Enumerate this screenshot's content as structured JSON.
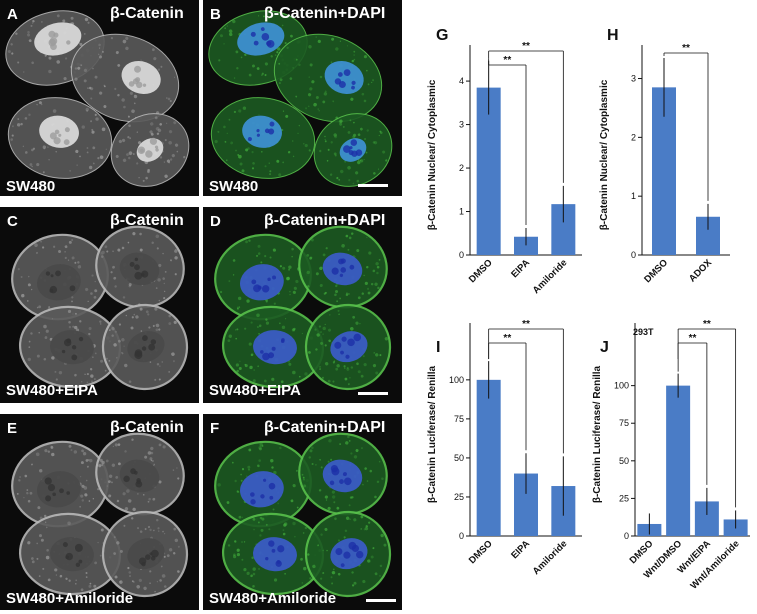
{
  "colors": {
    "bar": "#4a7cc6",
    "green": "#3e9a35",
    "blue": "#2f50c8",
    "axis": "#111111"
  },
  "micrographs": [
    {
      "letter": "A",
      "stain": "β-Catenin",
      "condition": "SW480",
      "merged": false,
      "pattern": "nuclear",
      "scalebar": false
    },
    {
      "letter": "B",
      "stain": "β-Catenin+DAPI",
      "condition": "SW480",
      "merged": true,
      "pattern": "nuclear",
      "scalebar": true
    },
    {
      "letter": "C",
      "stain": "β-Catenin",
      "condition": "SW480+EIPA",
      "merged": false,
      "pattern": "membrane",
      "scalebar": false
    },
    {
      "letter": "D",
      "stain": "β-Catenin+DAPI",
      "condition": "SW480+EIPA",
      "merged": true,
      "pattern": "membrane",
      "scalebar": true
    },
    {
      "letter": "E",
      "stain": "β-Catenin",
      "condition": "SW480+Amiloride",
      "merged": false,
      "pattern": "membrane",
      "scalebar": false
    },
    {
      "letter": "F",
      "stain": "β-Catenin+DAPI",
      "condition": "SW480+Amiloride",
      "merged": true,
      "pattern": "membrane",
      "scalebar": true
    }
  ],
  "chart_data": [
    {
      "panel": "G",
      "type": "bar",
      "categories": [
        "DMSO",
        "EIPA",
        "Amiloride"
      ],
      "values": [
        3.85,
        0.42,
        1.17
      ],
      "errors": [
        0.62,
        0.2,
        0.42
      ],
      "ylabel": "β-Catenin Nuclear/ Cytoplasmic",
      "ylim": [
        0,
        4.6
      ],
      "yticks": [
        0,
        1,
        2,
        3,
        4
      ],
      "annotation": "",
      "significance": [
        {
          "from": 0,
          "to": 1,
          "label": "**"
        },
        {
          "from": 0,
          "to": 2,
          "label": "**"
        }
      ]
    },
    {
      "panel": "H",
      "type": "bar",
      "categories": [
        "DMSO",
        "ADOX"
      ],
      "values": [
        2.85,
        0.65
      ],
      "errors": [
        0.5,
        0.22
      ],
      "ylabel": "β-Catenin Nuclear/ Cytoplasmic",
      "ylim": [
        0,
        3.4
      ],
      "yticks": [
        0,
        1,
        2,
        3
      ],
      "annotation": "",
      "significance": [
        {
          "from": 0,
          "to": 1,
          "label": "**"
        }
      ]
    },
    {
      "panel": "I",
      "type": "bar",
      "categories": [
        "DMSO",
        "EIPA",
        "Amiloride"
      ],
      "values": [
        100,
        40,
        32
      ],
      "errors": [
        12,
        13,
        19
      ],
      "ylabel": "β-Catenin Luciferase/ Renilla",
      "ylim": [
        0,
        130
      ],
      "yticks": [
        0,
        25,
        50,
        75,
        100
      ],
      "annotation": "",
      "significance": [
        {
          "from": 0,
          "to": 1,
          "label": "**"
        },
        {
          "from": 0,
          "to": 2,
          "label": "**"
        }
      ]
    },
    {
      "panel": "J",
      "type": "bar",
      "categories": [
        "DMSO",
        "Wnt/DMSO",
        "Wnt/EIPA",
        "Wnt/Amiloride"
      ],
      "values": [
        8,
        100,
        23,
        11
      ],
      "errors": [
        7,
        8,
        9,
        6
      ],
      "ylabel": "β-Catenin Luciferase/ Renilla",
      "ylim": [
        0,
        135
      ],
      "yticks": [
        0,
        25,
        50,
        75,
        100
      ],
      "annotation": "293T",
      "significance": [
        {
          "from": 1,
          "to": 2,
          "label": "**"
        },
        {
          "from": 1,
          "to": 3,
          "label": "**"
        }
      ]
    }
  ]
}
